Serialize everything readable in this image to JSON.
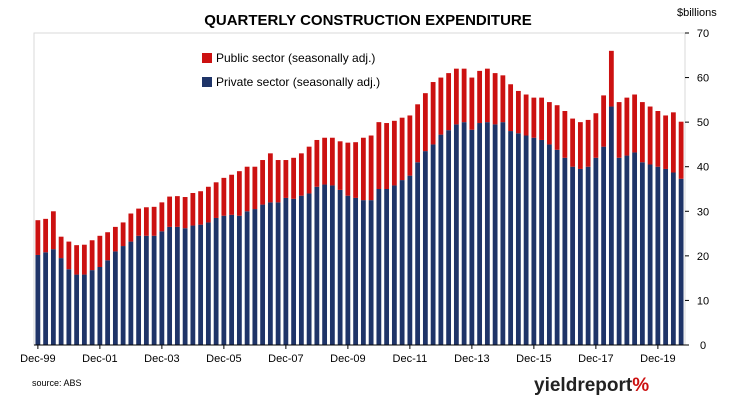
{
  "chart_data": {
    "type": "bar",
    "stacked": true,
    "title": "QUARTERLY CONSTRUCTION EXPENDITURE",
    "unit_label": "$billions",
    "ylim": [
      0,
      70
    ],
    "yticks": [
      0,
      10,
      20,
      30,
      40,
      50,
      60,
      70
    ],
    "y_axis_position": "right",
    "grid": false,
    "legend_position": "top-left",
    "x_tick_labels": [
      "Dec-99",
      "Dec-01",
      "Dec-03",
      "Dec-05",
      "Dec-07",
      "Dec-09",
      "Dec-11",
      "Dec-13",
      "Dec-15",
      "Dec-17",
      "Dec-19"
    ],
    "x_tick_indices": [
      0,
      8,
      16,
      24,
      32,
      40,
      48,
      56,
      64,
      72,
      80
    ],
    "first_period": "Dec-99",
    "last_period": "Dec-19",
    "series": [
      {
        "name": "Private sector (seasonally adj.)",
        "color": "#1f3468",
        "values": [
          20.2,
          20.8,
          21.5,
          19.5,
          17,
          15.8,
          15.8,
          16.8,
          17.5,
          19,
          21,
          22.2,
          23.2,
          24.5,
          24.5,
          24.5,
          25.5,
          26.5,
          26.5,
          26.2,
          26.8,
          27,
          27.5,
          28.5,
          29,
          29.2,
          29,
          30,
          30.5,
          31.5,
          32,
          32,
          33,
          32.8,
          33.5,
          34,
          35.5,
          36,
          35.8,
          34.8,
          33.5,
          33,
          32.5,
          32.5,
          35,
          35,
          35.8,
          37,
          38,
          41,
          43.5,
          45,
          47.2,
          48.2,
          49.5,
          50,
          48.3,
          49.8,
          50,
          49.5,
          50,
          48,
          47.5,
          47,
          46.5,
          46,
          45,
          43.8,
          42,
          40,
          39.5,
          40,
          42,
          44.5,
          53.5,
          42,
          42.5,
          43.2,
          41,
          40.5,
          40,
          39.5,
          38.7,
          37.3
        ]
      },
      {
        "name": "Public sector (seasonally adj.)",
        "color": "#cc1111",
        "values": [
          7.8,
          7.5,
          8.5,
          4.8,
          6.2,
          6.6,
          6.7,
          6.7,
          7,
          6.3,
          5.5,
          5.3,
          6.3,
          6.1,
          6.4,
          6.5,
          6.5,
          6.8,
          6.9,
          7,
          7.3,
          7.5,
          8,
          8,
          8.5,
          9,
          10,
          10,
          9.5,
          10,
          11,
          9.5,
          8.5,
          9.2,
          9.5,
          10.5,
          10.5,
          10.5,
          10.7,
          10.9,
          11.9,
          12.5,
          14,
          14.5,
          15,
          14.8,
          14.5,
          14,
          13.5,
          13,
          13,
          14,
          12.8,
          12.8,
          12.5,
          12,
          11.7,
          11.7,
          12,
          11.5,
          10.5,
          10.5,
          9.5,
          9.2,
          9,
          9.5,
          9.5,
          10,
          10.5,
          10.8,
          10.5,
          10.5,
          10,
          11.5,
          12.5,
          12.5,
          13,
          13,
          13.5,
          13,
          12.5,
          12,
          13.5,
          12.8
        ]
      }
    ]
  },
  "source_label": "source: ABS",
  "brand": {
    "name_part1": "yield",
    "name_part2": "report",
    "percent": "%"
  }
}
